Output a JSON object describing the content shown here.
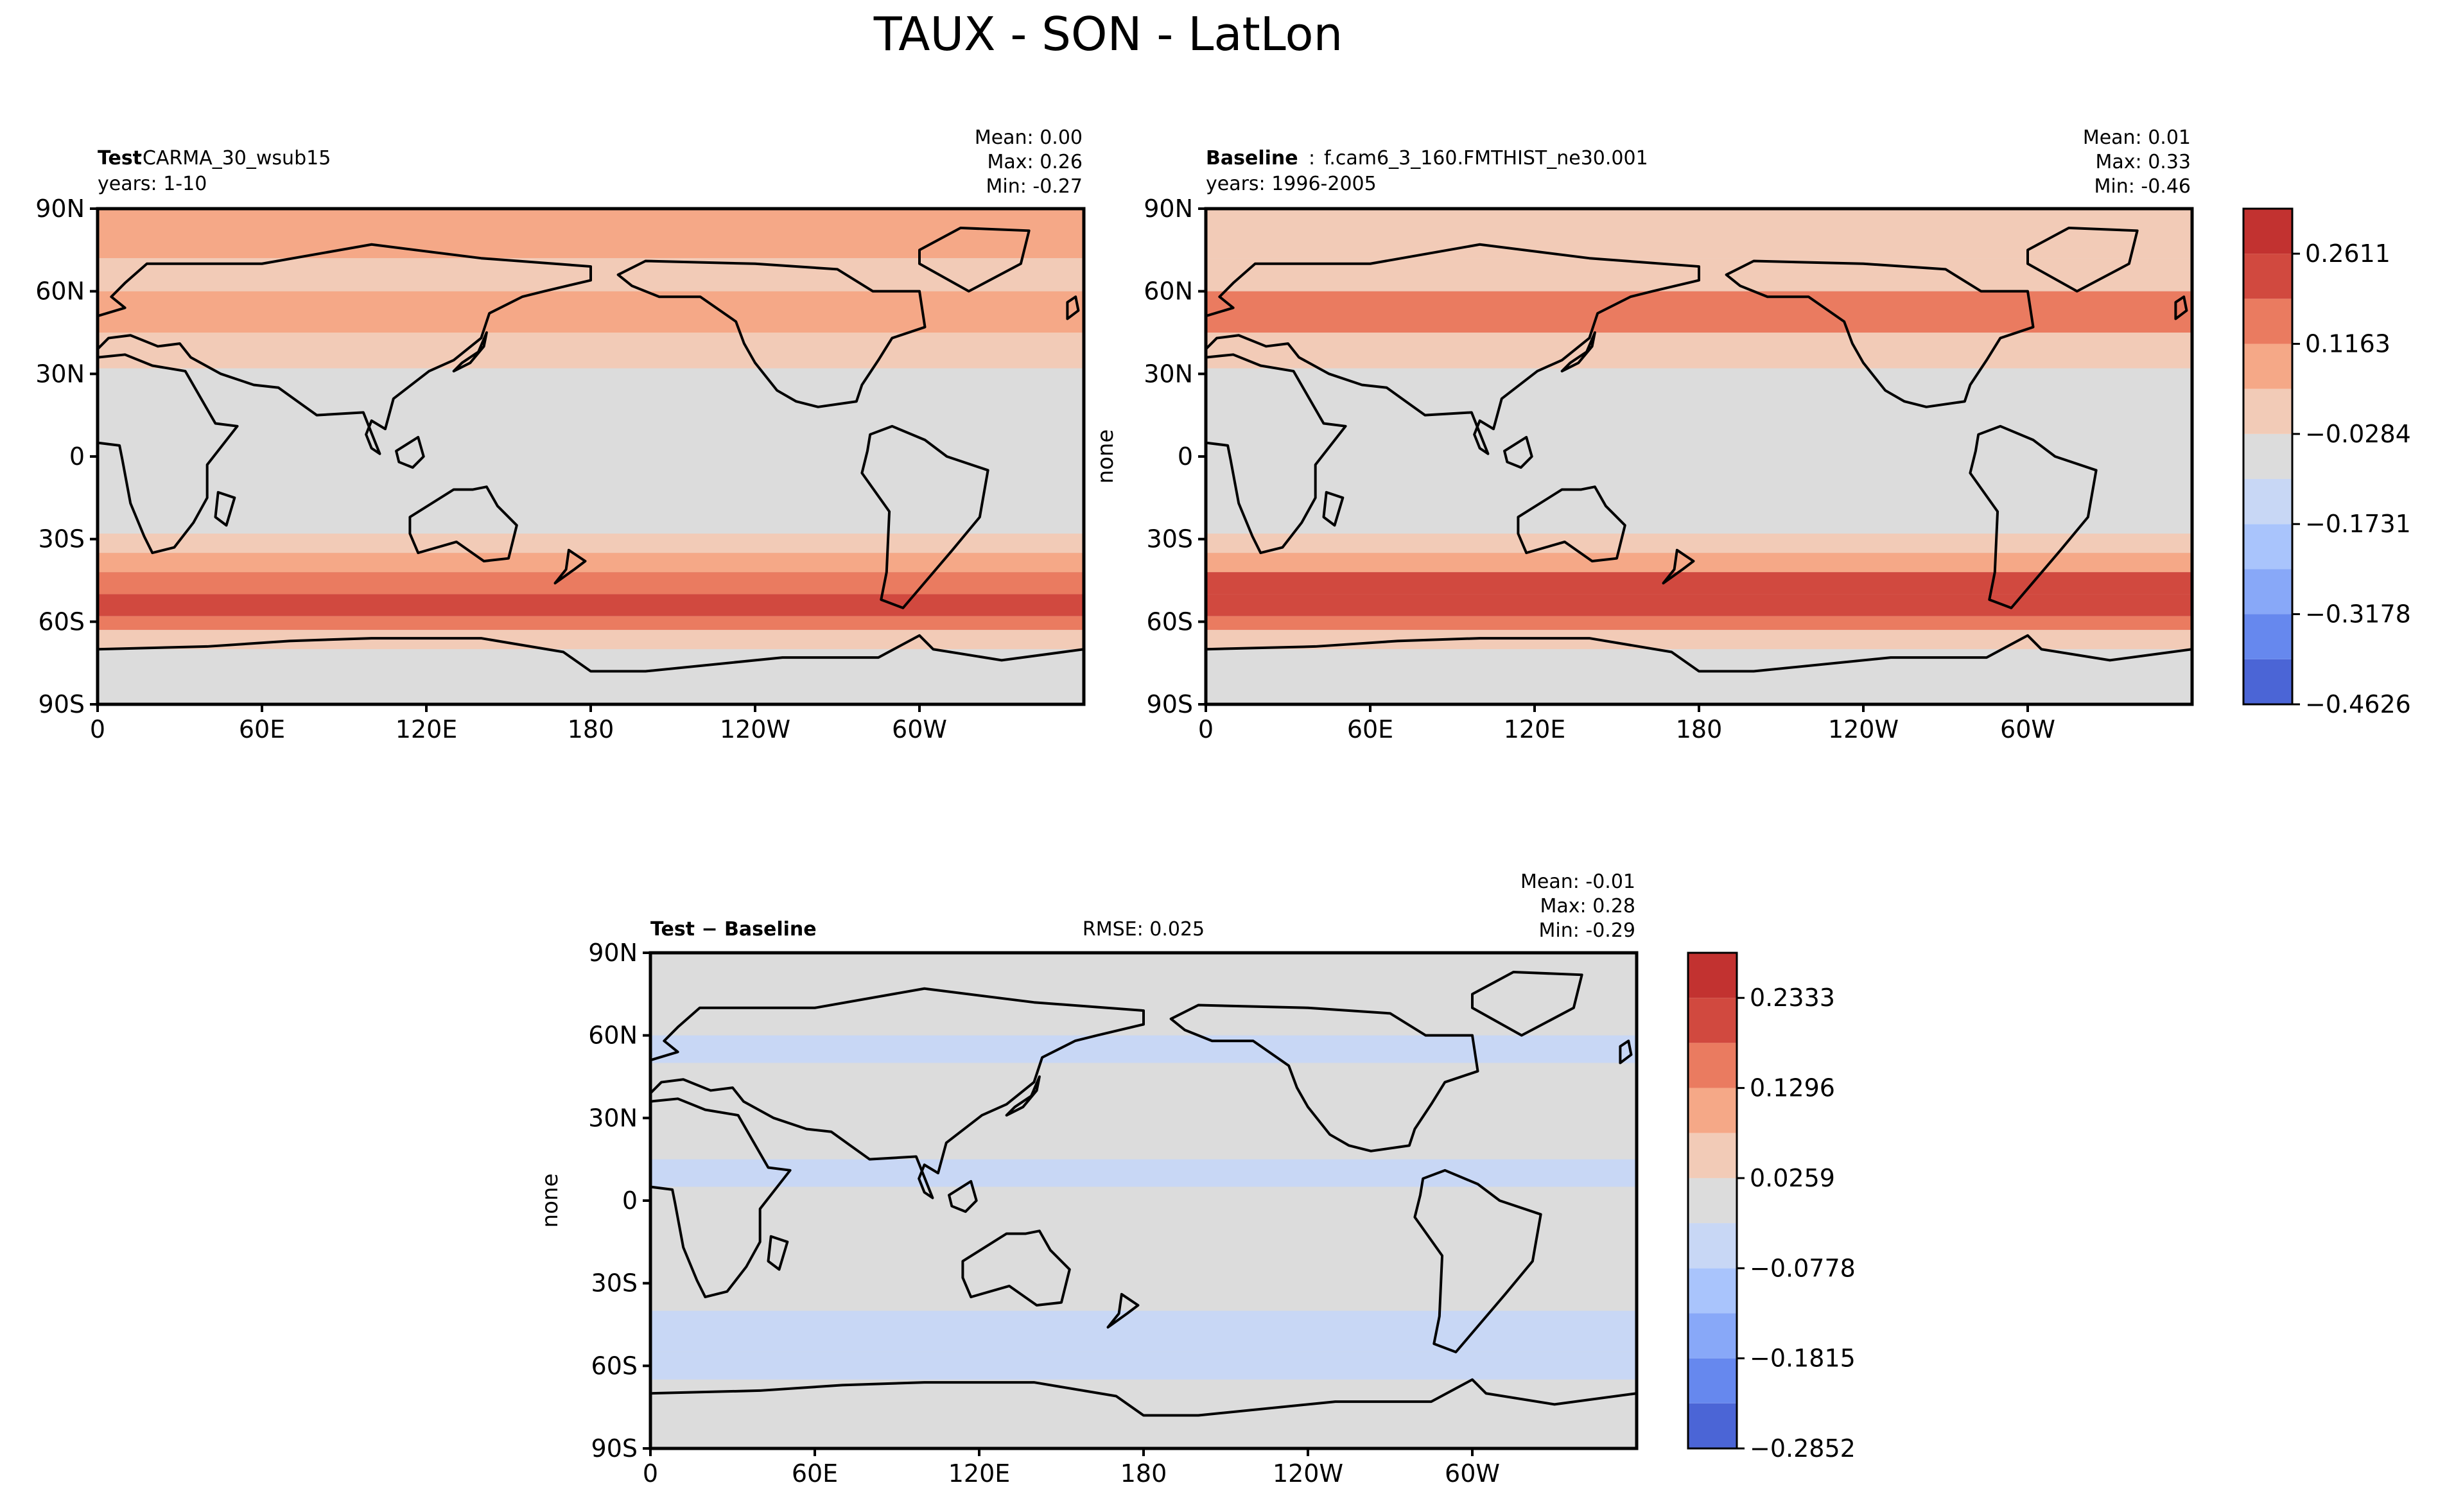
{
  "figure": {
    "title": "TAUX - SON - LatLon"
  },
  "chart_data": [
    {
      "type": "heatmap",
      "panel": "test",
      "title_bold": "Test",
      "title_sep": ": ",
      "title_case": "CARMA_30_wsub15",
      "years": "years: 1-10",
      "stats": {
        "mean": "Mean:  0.00",
        "max": "Max:  0.26",
        "min": "Min: -0.27"
      },
      "ylabel": "",
      "x_ticks": [
        "0",
        "60E",
        "120E",
        "180",
        "120W",
        "60W"
      ],
      "y_ticks": [
        "90N",
        "60N",
        "30N",
        "0",
        "30S",
        "60S",
        "90S"
      ],
      "zonal_bands": [
        {
          "lat": [
            90,
            72
          ],
          "value": 0.05
        },
        {
          "lat": [
            72,
            60
          ],
          "value": 0.0
        },
        {
          "lat": [
            60,
            45
          ],
          "value": 0.09
        },
        {
          "lat": [
            45,
            32
          ],
          "value": 0.0
        },
        {
          "lat": [
            32,
            12
          ],
          "value": -0.06
        },
        {
          "lat": [
            12,
            -5
          ],
          "value": -0.08
        },
        {
          "lat": [
            -5,
            -28
          ],
          "value": -0.07
        },
        {
          "lat": [
            -28,
            -35
          ],
          "value": 0.0
        },
        {
          "lat": [
            -35,
            -42
          ],
          "value": 0.09
        },
        {
          "lat": [
            -42,
            -50
          ],
          "value": 0.16
        },
        {
          "lat": [
            -50,
            -58
          ],
          "value": 0.22
        },
        {
          "lat": [
            -58,
            -63
          ],
          "value": 0.12
        },
        {
          "lat": [
            -63,
            -70
          ],
          "value": 0.0
        },
        {
          "lat": [
            -70,
            -90
          ],
          "value": -0.06
        }
      ]
    },
    {
      "type": "heatmap",
      "panel": "baseline",
      "title_bold": "Baseline",
      "title_sep": ": ",
      "title_case": "f.cam6_3_160.FMTHIST_ne30.001",
      "years": "years: 1996-2005",
      "stats": {
        "mean": "Mean:  0.01",
        "max": "Max:  0.33",
        "min": "Min: -0.46"
      },
      "ylabel": "none",
      "x_ticks": [
        "0",
        "60E",
        "120E",
        "180",
        "120W",
        "60W"
      ],
      "y_ticks": [
        "90N",
        "60N",
        "30N",
        "0",
        "30S",
        "60S",
        "90S"
      ],
      "colorbar": {
        "levels": [
          -0.4626,
          -0.3902,
          -0.3178,
          -0.2455,
          -0.1731,
          -0.1007,
          -0.0284,
          0.044,
          0.1163,
          0.1887,
          0.2611,
          0.3334
        ],
        "tick_labels": [
          "−0.4626",
          "−0.3178",
          "−0.1731",
          "−0.0284",
          "0.1163",
          "0.2611"
        ],
        "colors": [
          "#4b65d6",
          "#6688ee",
          "#88a8f8",
          "#a9c4fc",
          "#c8d7f5",
          "#dcdcdc",
          "#f2cbb7",
          "#f5a887",
          "#ea7b60",
          "#d1493f",
          "#c23230"
        ]
      },
      "zonal_bands": [
        {
          "lat": [
            90,
            72
          ],
          "value": 0.04
        },
        {
          "lat": [
            72,
            60
          ],
          "value": 0.0
        },
        {
          "lat": [
            60,
            45
          ],
          "value": 0.12
        },
        {
          "lat": [
            45,
            32
          ],
          "value": 0.0
        },
        {
          "lat": [
            32,
            12
          ],
          "value": -0.06
        },
        {
          "lat": [
            12,
            -5
          ],
          "value": -0.08
        },
        {
          "lat": [
            -5,
            -28
          ],
          "value": -0.07
        },
        {
          "lat": [
            -28,
            -35
          ],
          "value": 0.0
        },
        {
          "lat": [
            -35,
            -42
          ],
          "value": 0.1
        },
        {
          "lat": [
            -42,
            -50
          ],
          "value": 0.2
        },
        {
          "lat": [
            -50,
            -58
          ],
          "value": 0.26
        },
        {
          "lat": [
            -58,
            -63
          ],
          "value": 0.13
        },
        {
          "lat": [
            -63,
            -70
          ],
          "value": 0.0
        },
        {
          "lat": [
            -70,
            -90
          ],
          "value": -0.08
        }
      ]
    },
    {
      "type": "heatmap",
      "panel": "diff",
      "title_bold": "Test − Baseline",
      "title_sep": "",
      "title_case": "",
      "rmse": "RMSE: 0.025",
      "stats": {
        "mean": "Mean: -0.01",
        "max": "Max:  0.28",
        "min": "Min: -0.29"
      },
      "ylabel": "none",
      "x_ticks": [
        "0",
        "60E",
        "120E",
        "180",
        "120W",
        "60W"
      ],
      "y_ticks": [
        "90N",
        "60N",
        "30N",
        "0",
        "30S",
        "60S",
        "90S"
      ],
      "colorbar": {
        "levels": [
          -0.2852,
          -0.2333,
          -0.1815,
          -0.1296,
          -0.0778,
          -0.0259,
          0.0259,
          0.0778,
          0.1296,
          0.1815,
          0.2333,
          0.2852
        ],
        "tick_labels": [
          "−0.2852",
          "−0.1815",
          "−0.0778",
          "0.0259",
          "0.1296",
          "0.2333"
        ],
        "colors": [
          "#4b65d6",
          "#6688ee",
          "#88a8f8",
          "#a9c4fc",
          "#c8d7f5",
          "#dcdcdc",
          "#f2cbb7",
          "#f5a887",
          "#ea7b60",
          "#d1493f",
          "#c23230"
        ]
      },
      "zonal_bands": [
        {
          "lat": [
            90,
            60
          ],
          "value": 0.0
        },
        {
          "lat": [
            60,
            50
          ],
          "value": -0.04
        },
        {
          "lat": [
            50,
            15
          ],
          "value": 0.0
        },
        {
          "lat": [
            15,
            5
          ],
          "value": -0.04
        },
        {
          "lat": [
            5,
            -40
          ],
          "value": 0.0
        },
        {
          "lat": [
            -40,
            -55
          ],
          "value": -0.04
        },
        {
          "lat": [
            -55,
            -65
          ],
          "value": -0.04
        },
        {
          "lat": [
            -65,
            -90
          ],
          "value": 0.0
        }
      ]
    }
  ]
}
